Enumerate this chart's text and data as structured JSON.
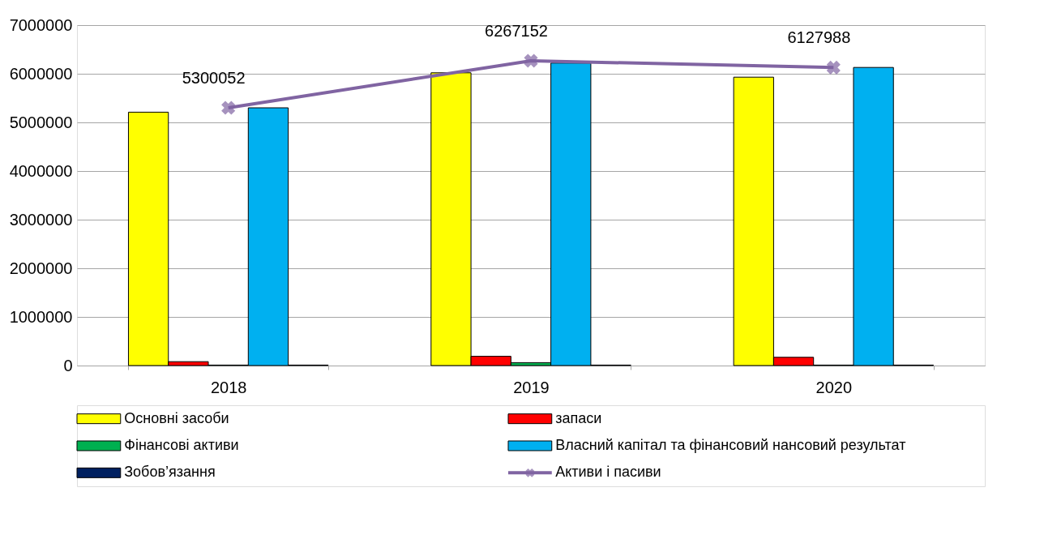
{
  "chart_data": {
    "type": "bar",
    "categories": [
      "2018",
      "2019",
      "2020"
    ],
    "series": [
      {
        "name": "Основні засоби",
        "color": "#ffff00",
        "values": [
          5210000,
          6020000,
          5930000
        ]
      },
      {
        "name": "запаси",
        "color": "#ff0000",
        "values": [
          80000,
          190000,
          170000
        ]
      },
      {
        "name": "Фінансові активи",
        "color": "#00b050",
        "values": [
          10000,
          60000,
          10000
        ]
      },
      {
        "name": "Власний капітал та фінансовий нансовий результат",
        "color": "#00b0f0",
        "values": [
          5300000,
          6220000,
          6130000
        ]
      },
      {
        "name": "Зобов’язання",
        "color": "#002060",
        "values": [
          10000,
          10000,
          10000
        ]
      },
      {
        "name": "Активи і пасиви",
        "type": "line",
        "color": "#8064a2",
        "marker": "cross",
        "values": [
          5300052,
          6267152,
          6127988
        ],
        "value_labels": [
          "5300052",
          "6267152",
          "6127988"
        ]
      }
    ],
    "ylim": [
      0,
      7000000
    ],
    "yticks": [
      0,
      1000000,
      2000000,
      3000000,
      4000000,
      5000000,
      6000000,
      7000000
    ],
    "grid": "y",
    "legend": "bottom"
  }
}
